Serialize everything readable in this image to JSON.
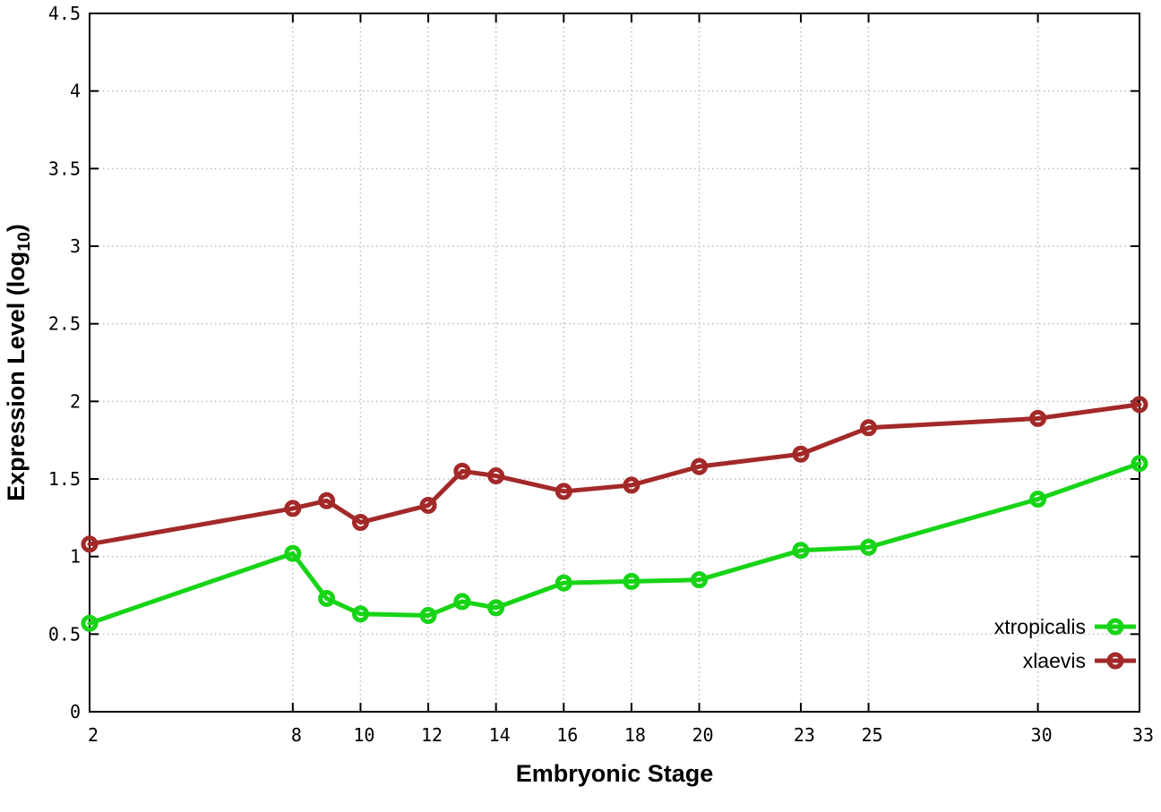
{
  "figure": {
    "background": "#ffffff",
    "border_color": "#000000",
    "grid_color": "#bcbcbc"
  },
  "labels": {
    "xlabel": "Embryonic Stage",
    "ylabel_main": "Expression Level (log",
    "ylabel_sub": "10",
    "ylabel_close": ")"
  },
  "chart_data": {
    "type": "line",
    "title": "",
    "xlabel": "Embryonic Stage",
    "ylabel": "Expression Level (log10)",
    "xlim": [
      2,
      33
    ],
    "ylim": [
      0,
      4.5
    ],
    "grid": true,
    "legend_position": "bottom-right-inside",
    "x": [
      2,
      8,
      9,
      10,
      12,
      13,
      14,
      16,
      18,
      20,
      23,
      25,
      30,
      33
    ],
    "xticks": [
      2,
      8,
      10,
      12,
      14,
      16,
      18,
      20,
      23,
      25,
      30,
      33
    ],
    "yticks": [
      0,
      0.5,
      1,
      1.5,
      2,
      2.5,
      3,
      3.5,
      4,
      4.5
    ],
    "series": [
      {
        "name": "xtropicalis",
        "color": "#17d417",
        "marker": "open-circle",
        "values": [
          0.57,
          1.02,
          0.73,
          0.63,
          0.62,
          0.71,
          0.67,
          0.83,
          0.84,
          0.85,
          1.04,
          1.06,
          1.37,
          1.6
        ]
      },
      {
        "name": "xlaevis",
        "color": "#a32929",
        "marker": "open-circle",
        "values": [
          1.08,
          1.31,
          1.36,
          1.22,
          1.33,
          1.55,
          1.52,
          1.42,
          1.46,
          1.58,
          1.66,
          1.83,
          1.89,
          1.98
        ]
      }
    ]
  }
}
